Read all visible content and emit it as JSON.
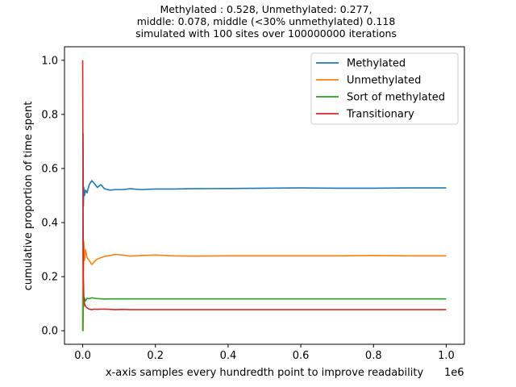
{
  "chart_data": {
    "type": "line",
    "title_lines": [
      "Methylated : 0.528, Unmethylated: 0.277,",
      "middle: 0.078, middle (<30% unmethylated) 0.118",
      "simulated with 100 sites over 100000000 iterations"
    ],
    "xlabel": "x-axis samples every hundredth point to improve readability",
    "ylabel": "cumulative proportion of time spent",
    "x_offset_label": "1e6",
    "xlim": [
      -50000,
      1050000
    ],
    "ylim": [
      -0.05,
      1.05
    ],
    "xticks": [
      0,
      200000,
      400000,
      600000,
      800000,
      1000000
    ],
    "xtick_labels": [
      "0.0",
      "0.2",
      "0.4",
      "0.6",
      "0.8",
      "1.0"
    ],
    "yticks": [
      0.0,
      0.2,
      0.4,
      0.6,
      0.8,
      1.0
    ],
    "ytick_labels": [
      "0.0",
      "0.2",
      "0.4",
      "0.6",
      "0.8",
      "1.0"
    ],
    "grid": false,
    "legend_position": "top-right",
    "series": [
      {
        "name": "Methylated",
        "color": "#1f77b4",
        "x": [
          0,
          1000,
          2000,
          3000,
          5000,
          8000,
          12000,
          18000,
          25000,
          32000,
          40000,
          50000,
          60000,
          75000,
          90000,
          110000,
          130000,
          160000,
          200000,
          250000,
          300000,
          400000,
          500000,
          600000,
          700000,
          800000,
          900000,
          1000000
        ],
        "y": [
          0.0,
          0.73,
          0.46,
          0.53,
          0.5,
          0.52,
          0.51,
          0.54,
          0.555,
          0.545,
          0.53,
          0.54,
          0.525,
          0.52,
          0.522,
          0.522,
          0.525,
          0.522,
          0.524,
          0.524,
          0.525,
          0.526,
          0.527,
          0.528,
          0.527,
          0.527,
          0.528,
          0.528
        ]
      },
      {
        "name": "Unmethylated",
        "color": "#ff7f0e",
        "x": [
          0,
          1000,
          2000,
          3000,
          5000,
          8000,
          12000,
          18000,
          25000,
          32000,
          40000,
          50000,
          60000,
          75000,
          90000,
          110000,
          130000,
          160000,
          200000,
          250000,
          300000,
          400000,
          500000,
          600000,
          700000,
          800000,
          900000,
          1000000
        ],
        "y": [
          0.0,
          0.33,
          0.22,
          0.33,
          0.26,
          0.3,
          0.27,
          0.26,
          0.245,
          0.255,
          0.265,
          0.27,
          0.275,
          0.278,
          0.282,
          0.28,
          0.276,
          0.278,
          0.28,
          0.277,
          0.276,
          0.277,
          0.277,
          0.277,
          0.277,
          0.278,
          0.277,
          0.277
        ]
      },
      {
        "name": "Sort of methylated",
        "color": "#2ca02c",
        "x": [
          0,
          1000,
          2000,
          3000,
          5000,
          8000,
          12000,
          18000,
          25000,
          32000,
          40000,
          50000,
          60000,
          75000,
          90000,
          110000,
          130000,
          160000,
          200000,
          250000,
          300000,
          400000,
          500000,
          600000,
          700000,
          800000,
          900000,
          1000000
        ],
        "y": [
          0.0,
          0.0,
          0.16,
          0.09,
          0.12,
          0.11,
          0.12,
          0.118,
          0.122,
          0.12,
          0.119,
          0.118,
          0.117,
          0.118,
          0.118,
          0.118,
          0.118,
          0.118,
          0.118,
          0.118,
          0.118,
          0.118,
          0.118,
          0.118,
          0.118,
          0.118,
          0.118,
          0.118
        ]
      },
      {
        "name": "Transitionary",
        "color": "#d62728",
        "x": [
          0,
          1000,
          2000,
          3000,
          5000,
          8000,
          12000,
          18000,
          25000,
          32000,
          40000,
          50000,
          60000,
          75000,
          90000,
          110000,
          130000,
          160000,
          200000,
          250000,
          300000,
          400000,
          500000,
          600000,
          700000,
          800000,
          900000,
          1000000
        ],
        "y": [
          1.0,
          0.5,
          0.2,
          0.13,
          0.1,
          0.09,
          0.085,
          0.08,
          0.078,
          0.08,
          0.079,
          0.08,
          0.08,
          0.079,
          0.078,
          0.079,
          0.078,
          0.078,
          0.078,
          0.078,
          0.078,
          0.078,
          0.078,
          0.078,
          0.078,
          0.078,
          0.078,
          0.078
        ]
      }
    ]
  }
}
